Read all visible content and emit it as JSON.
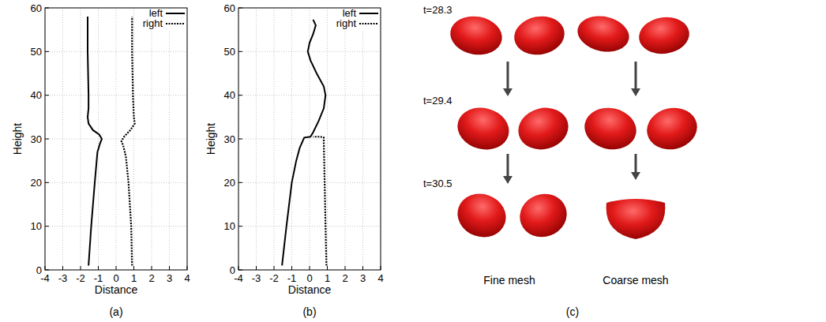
{
  "chart_data": [
    {
      "type": "line",
      "title": "(a)",
      "x_label": "Distance",
      "y_label": "Height",
      "xlim": [
        -4,
        4
      ],
      "ylim": [
        0,
        60
      ],
      "xticks": [
        -4,
        -3,
        -2,
        -1,
        0,
        1,
        2,
        3,
        4
      ],
      "yticks": [
        0,
        10,
        20,
        30,
        40,
        50,
        60
      ],
      "grid": true,
      "legend": "top-right",
      "series": [
        {
          "name": "left",
          "color": "#000000",
          "line_style": "solid",
          "x": [
            -1.55,
            -1.4,
            -1.2,
            -1.05,
            -0.9,
            -0.8,
            -0.95,
            -1.3,
            -1.55,
            -1.6,
            -1.55,
            -1.55,
            -1.6,
            -1.6
          ],
          "values": [
            1,
            10,
            20,
            27,
            29,
            30,
            31,
            32,
            33.5,
            35,
            37,
            40,
            50,
            58
          ]
        },
        {
          "name": "right",
          "color": "#000000",
          "line_style": "dashed",
          "x": [
            0.9,
            0.85,
            0.7,
            0.55,
            0.4,
            0.3,
            0.45,
            0.8,
            1.05,
            1.0,
            0.95,
            0.9,
            0.9
          ],
          "values": [
            1,
            10,
            20,
            26,
            28.5,
            29.5,
            30.5,
            32,
            33.5,
            35,
            40,
            50,
            58
          ]
        }
      ]
    },
    {
      "type": "line",
      "title": "(b)",
      "x_label": "Distance",
      "y_label": "Height",
      "xlim": [
        -4,
        4
      ],
      "ylim": [
        0,
        60
      ],
      "xticks": [
        -4,
        -3,
        -2,
        -1,
        0,
        1,
        2,
        3,
        4
      ],
      "yticks": [
        0,
        10,
        20,
        30,
        40,
        50,
        60
      ],
      "grid": true,
      "legend": "top-right",
      "series": [
        {
          "name": "left",
          "color": "#000000",
          "line_style": "solid",
          "x": [
            -1.55,
            -1.3,
            -1.0,
            -0.75,
            -0.55,
            -0.3,
            0.05,
            0.2,
            0.5,
            0.8,
            0.9,
            0.8,
            0.4,
            0.05,
            -0.1,
            0.0,
            0.2,
            0.35,
            0.2
          ],
          "values": [
            1,
            10,
            20,
            25,
            28,
            30.3,
            30.5,
            31.5,
            34,
            37,
            40,
            42,
            45,
            48,
            50,
            52,
            54,
            56,
            57.3
          ]
        },
        {
          "name": "right",
          "color": "#000000",
          "line_style": "dashed",
          "x": [
            0.95,
            0.9,
            0.85,
            0.8,
            0.8,
            0.6,
            0.2
          ],
          "values": [
            1,
            10,
            20,
            29.5,
            30.3,
            30.5,
            30.5
          ]
        }
      ]
    }
  ],
  "diagram": {
    "label": "(c)",
    "times": [
      "t=28.3",
      "t=29.4",
      "t=30.5"
    ],
    "columns": [
      "Fine mesh",
      "Coarse mesh"
    ]
  }
}
